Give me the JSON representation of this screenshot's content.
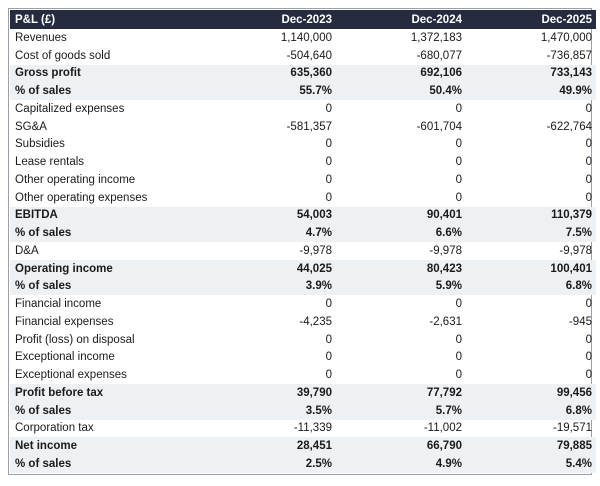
{
  "table": {
    "header": [
      "P&L (£)",
      "Dec-2023",
      "Dec-2024",
      "Dec-2025"
    ],
    "rows": [
      {
        "cells": [
          "Revenues",
          "1,140,000",
          "1,372,183",
          "1,470,000"
        ],
        "bold": false
      },
      {
        "cells": [
          "Cost of goods sold",
          "-504,640",
          "-680,077",
          "-736,857"
        ],
        "bold": false
      },
      {
        "cells": [
          "Gross profit",
          "635,360",
          "692,106",
          "733,143"
        ],
        "bold": true
      },
      {
        "cells": [
          "% of sales",
          "55.7%",
          "50.4%",
          "49.9%"
        ],
        "bold": true
      },
      {
        "cells": [
          "Capitalized expenses",
          "0",
          "0",
          "0"
        ],
        "bold": false
      },
      {
        "cells": [
          "SG&A",
          "-581,357",
          "-601,704",
          "-622,764"
        ],
        "bold": false
      },
      {
        "cells": [
          "Subsidies",
          "0",
          "0",
          "0"
        ],
        "bold": false
      },
      {
        "cells": [
          "Lease rentals",
          "0",
          "0",
          "0"
        ],
        "bold": false
      },
      {
        "cells": [
          "Other operating income",
          "0",
          "0",
          "0"
        ],
        "bold": false
      },
      {
        "cells": [
          "Other operating expenses",
          "0",
          "0",
          "0"
        ],
        "bold": false
      },
      {
        "cells": [
          "EBITDA",
          "54,003",
          "90,401",
          "110,379"
        ],
        "bold": true
      },
      {
        "cells": [
          "% of sales",
          "4.7%",
          "6.6%",
          "7.5%"
        ],
        "bold": true
      },
      {
        "cells": [
          "D&A",
          "-9,978",
          "-9,978",
          "-9,978"
        ],
        "bold": false
      },
      {
        "cells": [
          "Operating income",
          "44,025",
          "80,423",
          "100,401"
        ],
        "bold": true
      },
      {
        "cells": [
          "% of sales",
          "3.9%",
          "5.9%",
          "6.8%"
        ],
        "bold": true
      },
      {
        "cells": [
          "Financial income",
          "0",
          "0",
          "0"
        ],
        "bold": false
      },
      {
        "cells": [
          "Financial expenses",
          "-4,235",
          "-2,631",
          "-945"
        ],
        "bold": false
      },
      {
        "cells": [
          "Profit (loss) on disposal",
          "0",
          "0",
          "0"
        ],
        "bold": false
      },
      {
        "cells": [
          "Exceptional income",
          "0",
          "0",
          "0"
        ],
        "bold": false
      },
      {
        "cells": [
          "Exceptional expenses",
          "0",
          "0",
          "0"
        ],
        "bold": false
      },
      {
        "cells": [
          "Profit before tax",
          "39,790",
          "77,792",
          "99,456"
        ],
        "bold": true
      },
      {
        "cells": [
          "% of sales",
          "3.5%",
          "5.7%",
          "6.8%"
        ],
        "bold": true
      },
      {
        "cells": [
          "Corporation tax",
          "-11,339",
          "-11,002",
          "-19,571"
        ],
        "bold": false
      },
      {
        "cells": [
          "Net income",
          "28,451",
          "66,790",
          "79,885"
        ],
        "bold": true
      },
      {
        "cells": [
          "% of sales",
          "2.5%",
          "4.9%",
          "5.4%"
        ],
        "bold": true
      }
    ]
  }
}
